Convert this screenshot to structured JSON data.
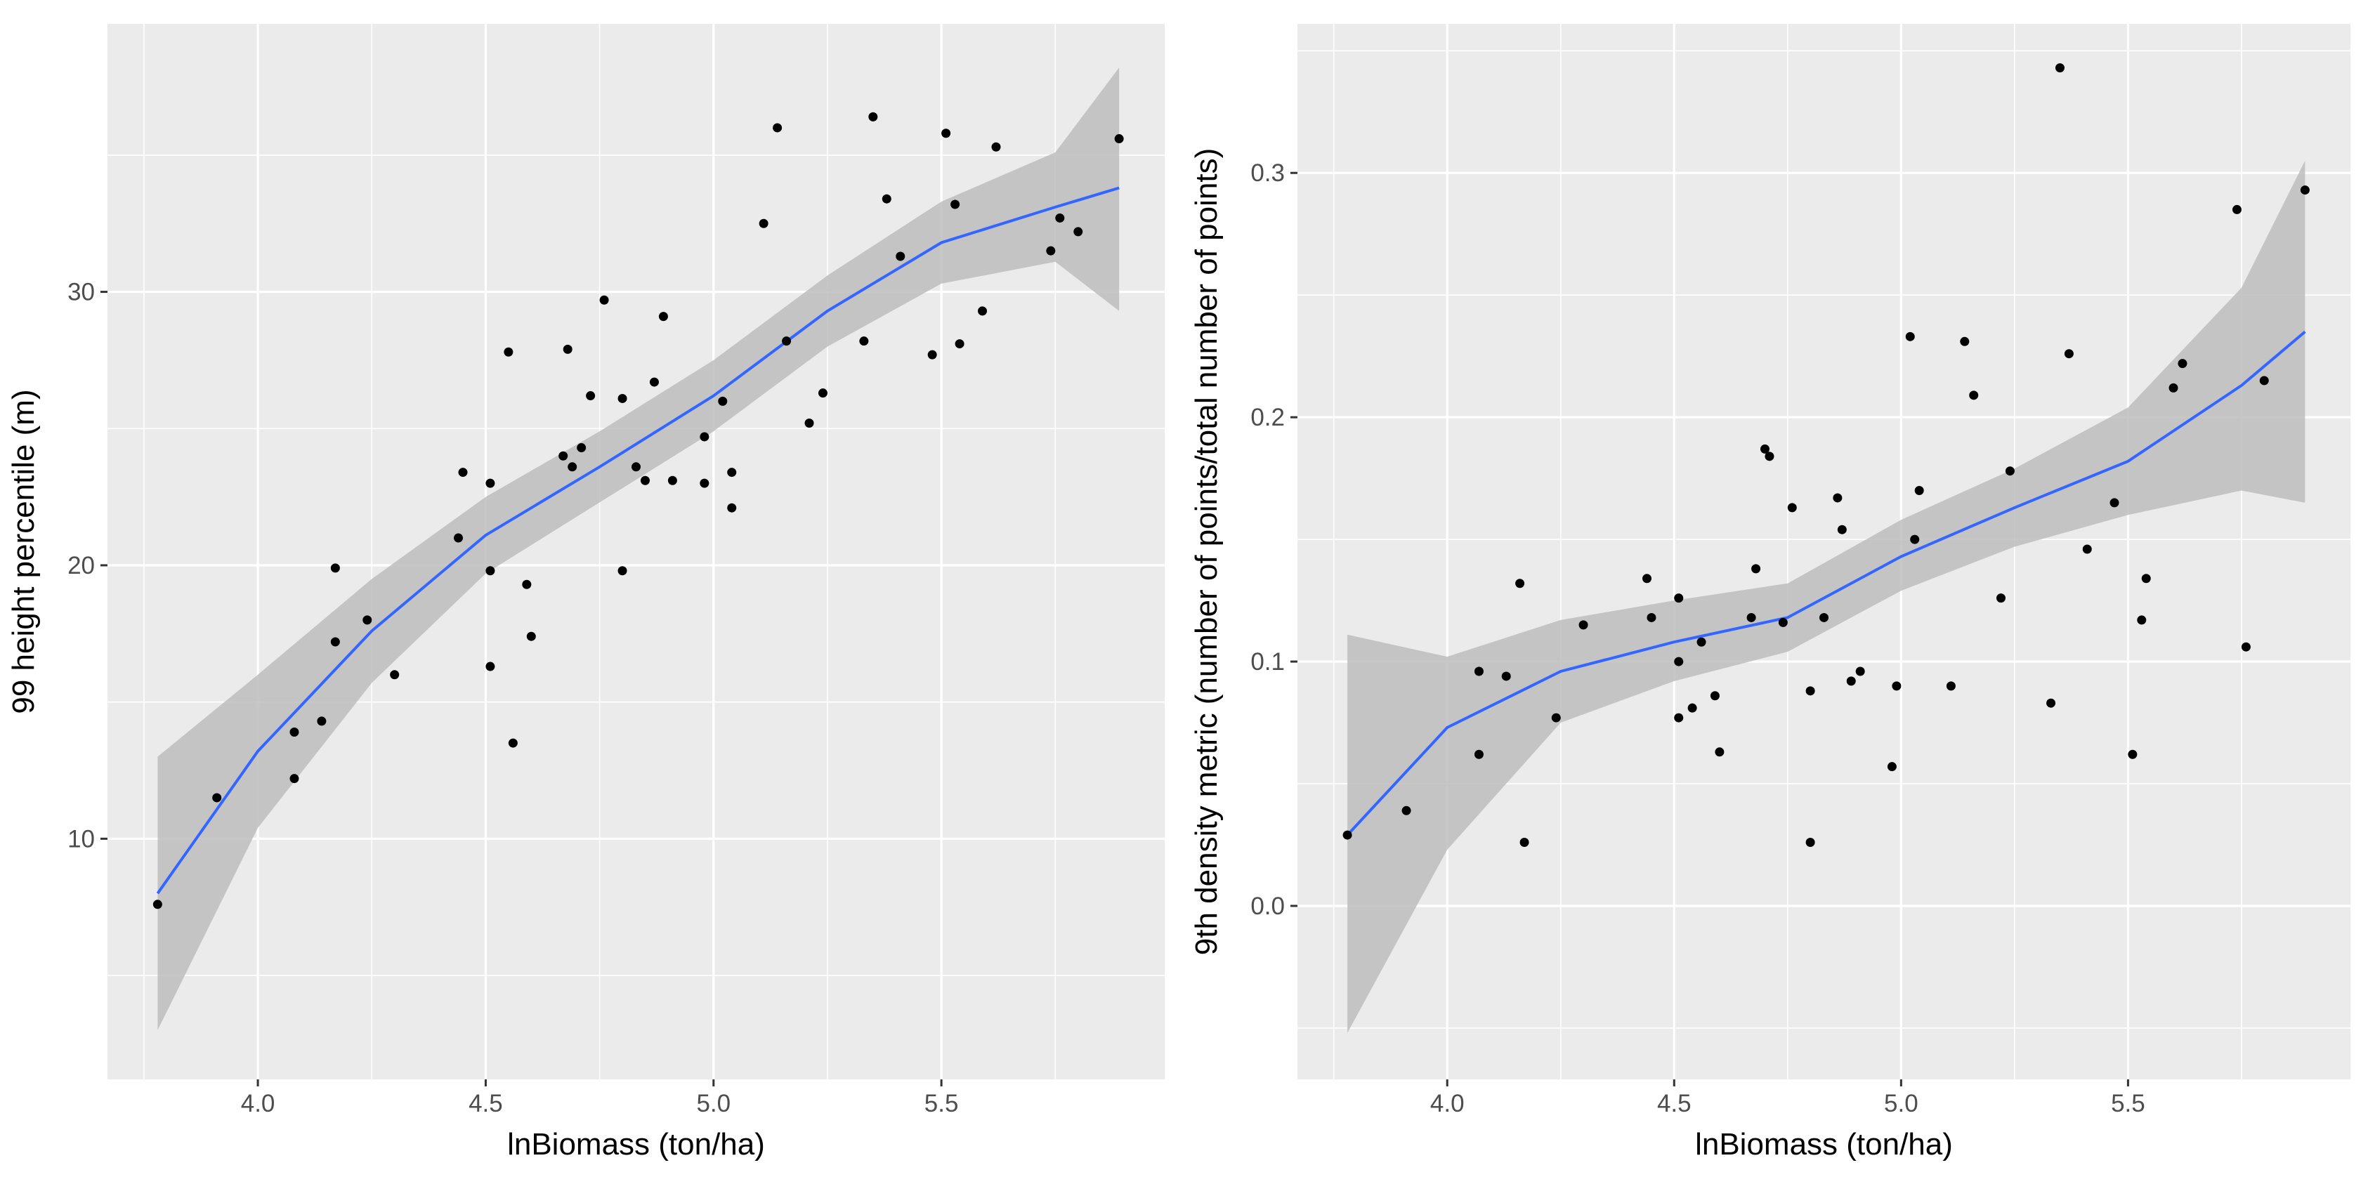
{
  "colors": {
    "panel_background": "#ebebeb",
    "grid_major": "#ffffff",
    "smooth_line": "#3366ff",
    "confidence_band": "#bdbdbd",
    "points": "#000000",
    "tick_mark": "#333333"
  },
  "chart_data": [
    {
      "type": "scatter",
      "title": "",
      "xlabel": "lnBiomass (ton/ha)",
      "ylabel": "99 height percentile (m)",
      "xlim": [
        3.67,
        5.99
      ],
      "ylim": [
        1.2,
        39.8
      ],
      "x_ticks": [
        4.0,
        4.5,
        5.0,
        5.5
      ],
      "x_tick_labels": [
        "4.0",
        "4.5",
        "5.0",
        "5.5"
      ],
      "y_ticks": [
        10,
        20,
        30
      ],
      "y_tick_labels": [
        "10",
        "20",
        "30"
      ],
      "points": [
        [
          3.78,
          7.6
        ],
        [
          3.91,
          11.5
        ],
        [
          4.08,
          13.9
        ],
        [
          4.08,
          12.2
        ],
        [
          4.14,
          14.3
        ],
        [
          4.17,
          19.9
        ],
        [
          4.17,
          17.2
        ],
        [
          4.24,
          18.0
        ],
        [
          4.3,
          16.0
        ],
        [
          4.44,
          21.0
        ],
        [
          4.45,
          23.4
        ],
        [
          4.51,
          23.0
        ],
        [
          4.51,
          19.8
        ],
        [
          4.51,
          16.3
        ],
        [
          4.55,
          27.8
        ],
        [
          4.56,
          13.5
        ],
        [
          4.59,
          19.3
        ],
        [
          4.6,
          17.4
        ],
        [
          4.67,
          24.0
        ],
        [
          4.68,
          27.9
        ],
        [
          4.69,
          23.6
        ],
        [
          4.71,
          24.3
        ],
        [
          4.73,
          26.2
        ],
        [
          4.76,
          29.7
        ],
        [
          4.8,
          26.1
        ],
        [
          4.8,
          19.8
        ],
        [
          4.83,
          23.6
        ],
        [
          4.85,
          23.1
        ],
        [
          4.87,
          26.7
        ],
        [
          4.89,
          29.1
        ],
        [
          4.91,
          23.1
        ],
        [
          4.98,
          24.7
        ],
        [
          4.98,
          23.0
        ],
        [
          5.02,
          26.0
        ],
        [
          5.04,
          22.1
        ],
        [
          5.04,
          23.4
        ],
        [
          5.11,
          32.5
        ],
        [
          5.14,
          36.0
        ],
        [
          5.16,
          28.2
        ],
        [
          5.21,
          25.2
        ],
        [
          5.24,
          26.3
        ],
        [
          5.33,
          28.2
        ],
        [
          5.35,
          36.4
        ],
        [
          5.38,
          33.4
        ],
        [
          5.41,
          31.3
        ],
        [
          5.48,
          27.7
        ],
        [
          5.51,
          35.8
        ],
        [
          5.53,
          33.2
        ],
        [
          5.54,
          28.1
        ],
        [
          5.59,
          29.3
        ],
        [
          5.62,
          35.3
        ],
        [
          5.74,
          31.5
        ],
        [
          5.76,
          32.7
        ],
        [
          5.8,
          32.2
        ],
        [
          5.89,
          35.6
        ]
      ],
      "smooth": {
        "x": [
          3.78,
          4.0,
          4.25,
          4.5,
          4.75,
          5.0,
          5.25,
          5.5,
          5.75,
          5.89
        ],
        "y": [
          8.0,
          13.2,
          17.6,
          21.1,
          23.6,
          26.2,
          29.3,
          31.8,
          33.1,
          33.8
        ],
        "lower": [
          3.0,
          10.4,
          15.7,
          19.7,
          22.3,
          24.9,
          28.0,
          30.3,
          31.1,
          29.3
        ],
        "upper": [
          13.0,
          16.0,
          19.5,
          22.5,
          24.9,
          27.5,
          30.6,
          33.3,
          35.1,
          38.2
        ]
      }
    },
    {
      "type": "scatter",
      "title": "",
      "xlabel": "lnBiomass (ton/ha)",
      "ylabel": "9th density metric (number of points/total number of points)",
      "xlim": [
        3.67,
        5.99
      ],
      "ylim": [
        -0.071,
        0.361
      ],
      "x_ticks": [
        4.0,
        4.5,
        5.0,
        5.5
      ],
      "x_tick_labels": [
        "4.0",
        "4.5",
        "5.0",
        "5.5"
      ],
      "y_ticks": [
        0.0,
        0.1,
        0.2,
        0.3
      ],
      "y_tick_labels": [
        "0.0",
        "0.1",
        "0.2",
        "0.3"
      ],
      "points": [
        [
          3.78,
          0.029
        ],
        [
          3.91,
          0.039
        ],
        [
          4.07,
          0.096
        ],
        [
          4.07,
          0.062
        ],
        [
          4.13,
          0.094
        ],
        [
          4.16,
          0.132
        ],
        [
          4.17,
          0.026
        ],
        [
          4.24,
          0.077
        ],
        [
          4.3,
          0.115
        ],
        [
          4.44,
          0.134
        ],
        [
          4.45,
          0.118
        ],
        [
          4.51,
          0.126
        ],
        [
          4.51,
          0.1
        ],
        [
          4.51,
          0.077
        ],
        [
          4.54,
          0.081
        ],
        [
          4.56,
          0.108
        ],
        [
          4.59,
          0.086
        ],
        [
          4.6,
          0.063
        ],
        [
          4.67,
          0.118
        ],
        [
          4.68,
          0.138
        ],
        [
          4.7,
          0.187
        ],
        [
          4.71,
          0.184
        ],
        [
          4.74,
          0.116
        ],
        [
          4.76,
          0.163
        ],
        [
          4.8,
          0.088
        ],
        [
          4.8,
          0.026
        ],
        [
          4.83,
          0.118
        ],
        [
          4.86,
          0.167
        ],
        [
          4.87,
          0.154
        ],
        [
          4.89,
          0.092
        ],
        [
          4.91,
          0.096
        ],
        [
          4.98,
          0.057
        ],
        [
          4.99,
          0.09
        ],
        [
          5.02,
          0.233
        ],
        [
          5.03,
          0.15
        ],
        [
          5.04,
          0.17
        ],
        [
          5.11,
          0.09
        ],
        [
          5.14,
          0.231
        ],
        [
          5.16,
          0.209
        ],
        [
          5.22,
          0.126
        ],
        [
          5.24,
          0.178
        ],
        [
          5.33,
          0.083
        ],
        [
          5.35,
          0.343
        ],
        [
          5.37,
          0.226
        ],
        [
          5.41,
          0.146
        ],
        [
          5.47,
          0.165
        ],
        [
          5.51,
          0.062
        ],
        [
          5.53,
          0.117
        ],
        [
          5.54,
          0.134
        ],
        [
          5.6,
          0.212
        ],
        [
          5.62,
          0.222
        ],
        [
          5.74,
          0.285
        ],
        [
          5.76,
          0.106
        ],
        [
          5.8,
          0.215
        ],
        [
          5.89,
          0.293
        ]
      ],
      "smooth": {
        "x": [
          3.78,
          4.0,
          4.25,
          4.5,
          4.75,
          5.0,
          5.25,
          5.5,
          5.75,
          5.89
        ],
        "y": [
          0.029,
          0.073,
          0.096,
          0.108,
          0.118,
          0.143,
          0.163,
          0.182,
          0.213,
          0.235
        ],
        "lower": [
          -0.052,
          0.023,
          0.075,
          0.092,
          0.104,
          0.129,
          0.147,
          0.16,
          0.17,
          0.165
        ],
        "upper": [
          0.111,
          0.102,
          0.117,
          0.125,
          0.132,
          0.158,
          0.179,
          0.204,
          0.253,
          0.305
        ]
      }
    }
  ]
}
